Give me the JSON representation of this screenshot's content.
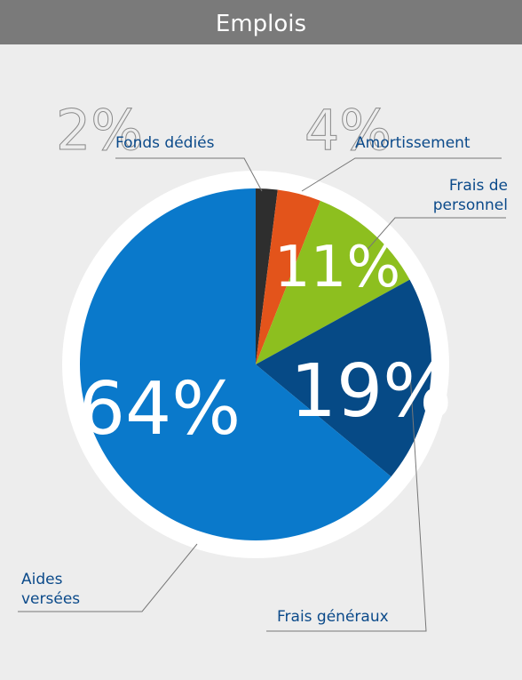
{
  "chart_data": {
    "type": "pie",
    "title": "Emplois",
    "categories": [
      "Fonds dédiés",
      "Amortissement",
      "Frais de personnel",
      "Frais généraux",
      "Aides versées"
    ],
    "values": [
      2,
      4,
      11,
      19,
      64
    ],
    "value_labels": [
      "2%",
      "4%",
      "11%",
      "19%",
      "64%"
    ],
    "colors": [
      "#2e2e2e",
      "#e3541b",
      "#8dbf1f",
      "#064a86",
      "#0a79cb"
    ]
  }
}
